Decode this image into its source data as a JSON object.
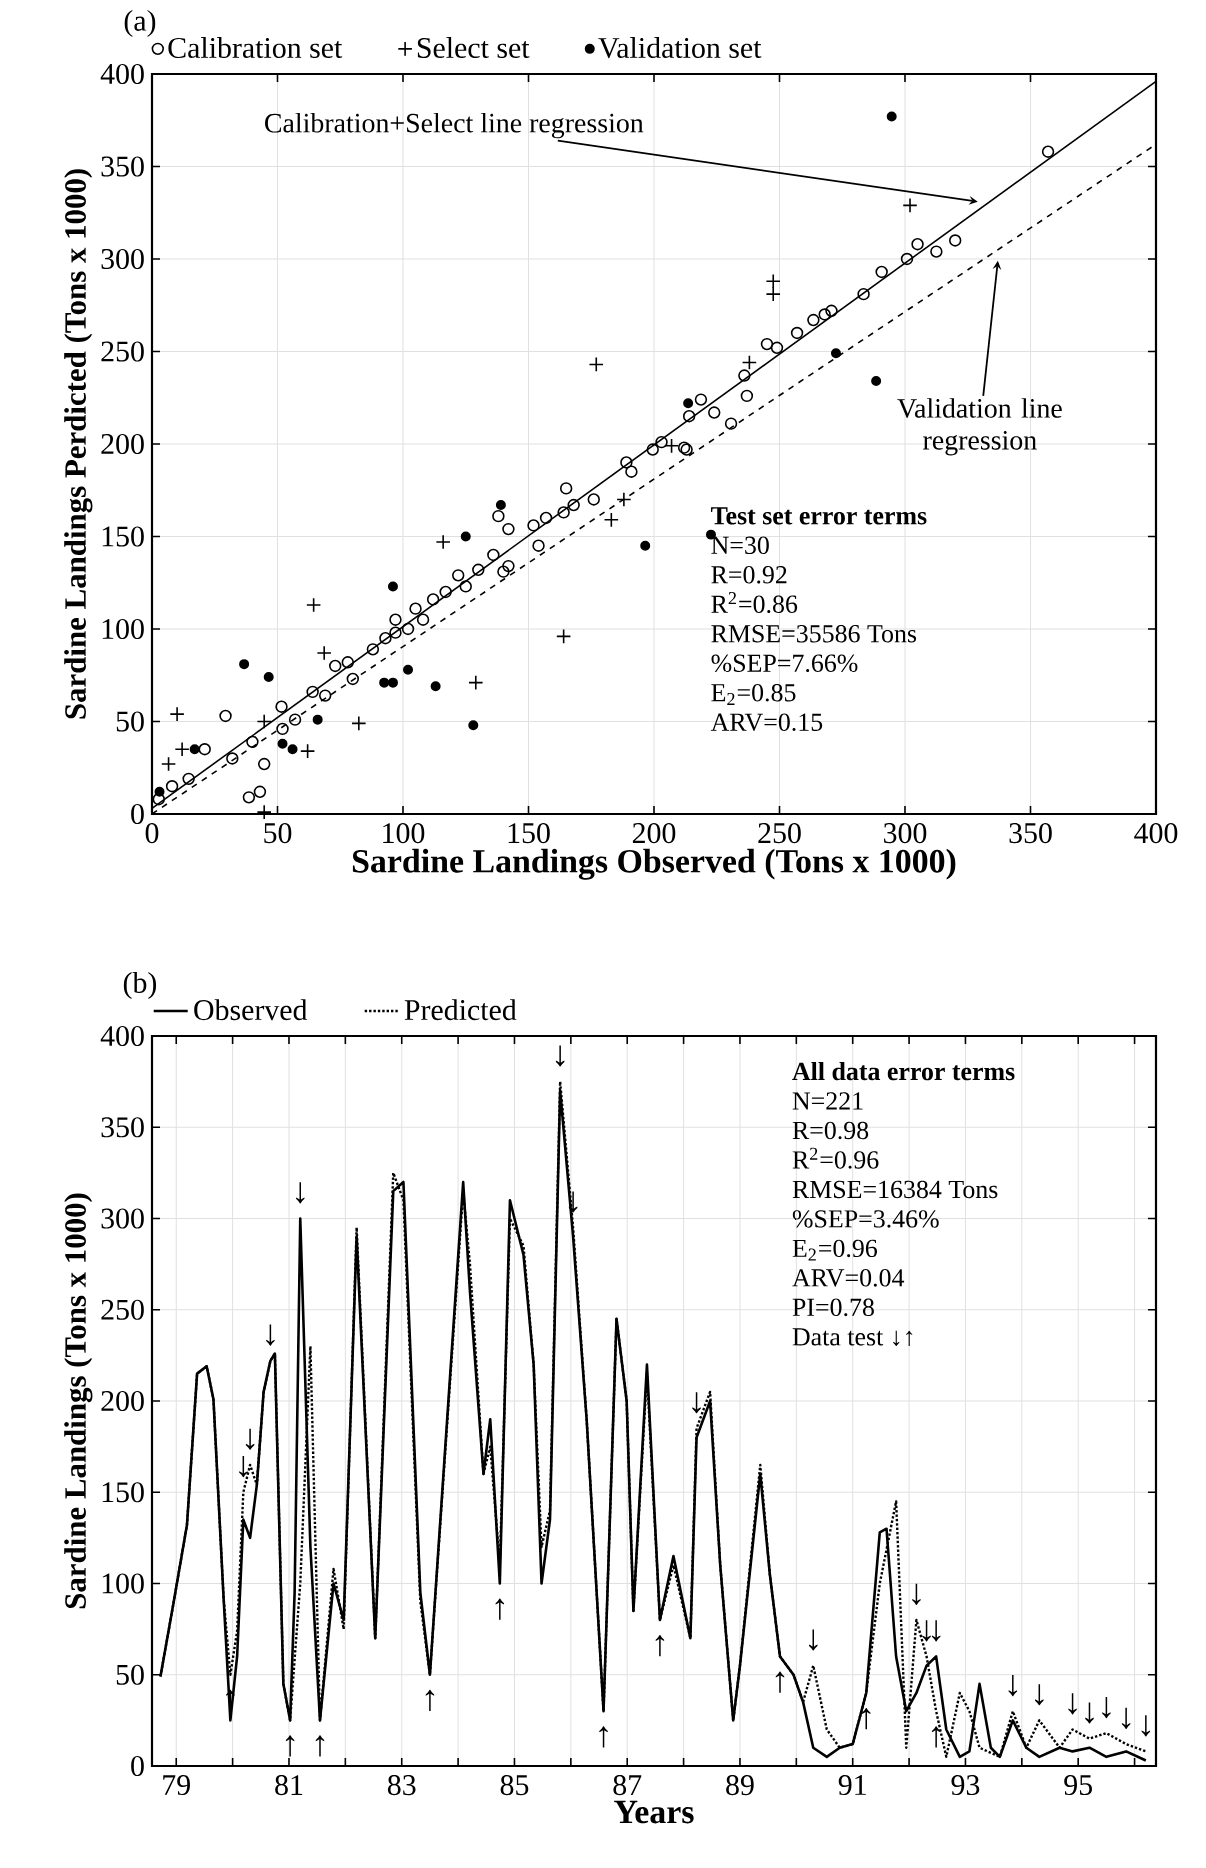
{
  "chart_data": [
    {
      "type": "scatter",
      "title": "(a)",
      "xlabel": "Sardine Landings Observed (Tons x 1000)",
      "ylabel": "Sardine Landings Perdicted (Tons x 1000)",
      "xlim": [
        0,
        400
      ],
      "ylim": [
        0,
        400
      ],
      "xticks": [
        0,
        50,
        100,
        150,
        200,
        250,
        300,
        350,
        400
      ],
      "yticks": [
        0,
        50,
        100,
        150,
        200,
        250,
        300,
        350,
        400
      ],
      "grid": true,
      "legend": "top",
      "series": [
        {
          "name": "Calibration set",
          "color": "#000000",
          "marker": "circle",
          "x": [
            38.6,
            43,
            44.7,
            29.3,
            21,
            14.6,
            8,
            2.7,
            32,
            40,
            52,
            51.6,
            57,
            64,
            69,
            73,
            78,
            80,
            88,
            93,
            97,
            97,
            102,
            105,
            108,
            112,
            117,
            122,
            125,
            130,
            136,
            140,
            142,
            138,
            142,
            152,
            154,
            157,
            164,
            165,
            168,
            176,
            189,
            191,
            199.5,
            203,
            213,
            214,
            218.7,
            224,
            230.7,
            237,
            236,
            245,
            249,
            257,
            263.5,
            268,
            270.7,
            283.5,
            290.7,
            300.8,
            305,
            312.5,
            320,
            357,
            212
          ],
          "values": [
            9,
            12,
            27,
            53,
            35,
            19,
            15,
            8,
            30,
            39,
            46,
            58,
            51,
            66,
            64,
            80,
            82,
            73,
            89,
            95,
            98,
            105,
            100,
            111,
            105,
            116,
            120,
            129,
            123,
            132,
            140,
            131,
            134,
            161,
            154,
            156,
            145,
            160,
            163,
            176,
            167,
            170,
            190,
            185,
            197,
            201,
            197,
            215,
            224,
            217,
            211,
            226,
            237,
            254,
            252,
            260,
            267,
            270,
            272,
            281,
            293,
            300,
            308,
            304,
            310,
            358,
            198
          ]
        },
        {
          "name": "Select set",
          "color": "#000000",
          "marker": "cross",
          "x": [
            10,
            12,
            6.6,
            44.7,
            64.4,
            68.6,
            62,
            82.4,
            116,
            129,
            164,
            183,
            188,
            44.7,
            207,
            177,
            302,
            247.5,
            247.5,
            238
          ],
          "values": [
            54,
            35,
            27,
            50,
            113,
            87,
            34,
            49,
            147,
            71,
            96,
            159,
            170,
            1,
            199,
            243,
            329,
            288,
            281,
            244
          ]
        },
        {
          "name": "Validation set",
          "color": "#000000",
          "marker": "circle",
          "x": [
            3,
            17,
            36.7,
            46.5,
            52,
            56,
            66,
            92.5,
            96,
            96,
            102,
            113,
            125,
            128,
            139,
            196.5,
            213.6,
            222.7,
            272.5,
            288.5,
            294.7
          ],
          "values": [
            12,
            35,
            81,
            74,
            38,
            35,
            51,
            71,
            71,
            123,
            78,
            69,
            150,
            48,
            167,
            145,
            222,
            151,
            249,
            234,
            377
          ]
        },
        {
          "type": "line",
          "color": "#000000",
          "line_style": "solid",
          "x": [
            0,
            400
          ],
          "values": [
            3,
            396
          ]
        },
        {
          "type": "line",
          "color": "#000000",
          "line_style": "dashed",
          "x": [
            0,
            400
          ],
          "values": [
            0,
            362
          ]
        }
      ],
      "annotations": [
        {
          "text": "Calibration+Select line regression",
          "x": 329,
          "y": 331
        },
        {
          "text": "Validation line regression",
          "x": 337,
          "y": 299
        },
        "Test set error terms",
        "N=30",
        "R=0.92",
        "R$^{2}$=0.86",
        "RMSE=35586 Tons",
        "%SEP=7.66%",
        "E$_{2}$=0.85",
        "ARV=0.15"
      ]
    },
    {
      "type": "line",
      "title": "(b)",
      "xlabel": "Years",
      "ylabel": "Sardine Landings (Tons x 1000)",
      "xlim": [
        78.57,
        96.38
      ],
      "ylim": [
        0,
        400
      ],
      "xticks": [
        79,
        {
          "value": 80,
          "label": null
        },
        81,
        {
          "value": 82,
          "label": null
        },
        83,
        {
          "value": 84,
          "label": null
        },
        85,
        {
          "value": 86,
          "label": null
        },
        87,
        {
          "value": 88,
          "label": null
        },
        89,
        {
          "value": 90,
          "label": null
        },
        91,
        {
          "value": 92,
          "label": null
        },
        93,
        {
          "value": 94,
          "label": null
        },
        95,
        {
          "value": 96,
          "label": null
        }
      ],
      "yticks": [
        0,
        50,
        100,
        150,
        200,
        250,
        300,
        350,
        400
      ],
      "grid": true,
      "legend": "top",
      "series": [
        {
          "name": "Observed",
          "color": "#000000",
          "line_style": "solid",
          "x": [
            78.72,
            78.95,
            79.19,
            79.37,
            79.54,
            79.66,
            79.84,
            79.96,
            80.08,
            80.19,
            80.31,
            80.43,
            80.55,
            80.67,
            80.75,
            80.9,
            81.02,
            81.1,
            81.2,
            81.38,
            81.55,
            81.79,
            81.97,
            82.2,
            82.53,
            82.85,
            83.03,
            83.33,
            83.5,
            84.09,
            84.21,
            84.45,
            84.57,
            84.74,
            84.92,
            85.16,
            85.34,
            85.48,
            85.63,
            85.81,
            86.04,
            86.28,
            86.58,
            86.81,
            86.99,
            87.11,
            87.35,
            87.58,
            87.82,
            88.12,
            88.23,
            88.47,
            88.65,
            88.88,
            89.0,
            89.36,
            89.53,
            89.71,
            89.95,
            90.12,
            90.3,
            90.54,
            90.77,
            91.0,
            91.24,
            91.48,
            91.6,
            91.77,
            91.95,
            92.13,
            92.31,
            92.48,
            92.66,
            92.9,
            93.07,
            93.25,
            93.45,
            93.61,
            93.84,
            94.08,
            94.31,
            94.67,
            94.9,
            95.2,
            95.5,
            95.85,
            96.2
          ],
          "values": [
            49,
            89,
            132,
            215,
            219,
            201,
            92,
            25,
            60,
            135,
            125,
            154,
            205,
            222,
            226,
            45,
            25,
            95,
            300,
            120,
            25,
            100,
            80,
            290,
            70,
            315,
            320,
            95,
            50,
            320,
            260,
            160,
            190,
            100,
            310,
            280,
            220,
            100,
            135,
            370,
            290,
            190,
            30,
            245,
            200,
            85,
            220,
            80,
            115,
            70,
            180,
            200,
            110,
            25,
            55,
            160,
            105,
            60,
            50,
            35,
            10,
            5,
            10,
            12,
            40,
            128,
            130,
            60,
            30,
            40,
            55,
            60,
            20,
            5,
            8,
            45,
            10,
            5,
            25,
            10,
            5,
            10,
            8,
            10,
            5,
            8,
            3
          ]
        },
        {
          "name": "Predicted",
          "color": "#000000",
          "line_style": "dotted",
          "x": [
            78.72,
            78.95,
            79.19,
            79.37,
            79.54,
            79.66,
            79.84,
            79.96,
            80.08,
            80.19,
            80.31,
            80.43,
            80.55,
            80.67,
            80.75,
            80.9,
            81.02,
            81.2,
            81.38,
            81.55,
            81.79,
            81.97,
            82.2,
            82.53,
            82.85,
            83.03,
            83.33,
            83.5,
            84.09,
            84.21,
            84.45,
            84.57,
            84.74,
            84.92,
            85.16,
            85.34,
            85.48,
            85.63,
            85.81,
            86.04,
            86.28,
            86.58,
            86.81,
            86.99,
            87.11,
            87.35,
            87.58,
            87.82,
            88.12,
            88.23,
            88.47,
            88.65,
            88.88,
            89.0,
            89.36,
            89.53,
            89.71,
            89.95,
            90.12,
            90.3,
            90.54,
            90.77,
            91.0,
            91.24,
            91.48,
            91.77,
            91.95,
            92.13,
            92.31,
            92.48,
            92.66,
            92.9,
            93.07,
            93.25,
            93.61,
            93.84,
            94.08,
            94.31,
            94.67,
            94.9,
            95.2,
            95.5,
            95.85,
            96.2
          ],
          "values": [
            49,
            89,
            132,
            215,
            219,
            201,
            92,
            50,
            74,
            150,
            165,
            154,
            205,
            222,
            226,
            45,
            25,
            100,
            230,
            25,
            108,
            75,
            295,
            70,
            325,
            310,
            90,
            50,
            315,
            275,
            160,
            175,
            110,
            300,
            285,
            220,
            120,
            140,
            375,
            295,
            190,
            30,
            245,
            200,
            85,
            215,
            80,
            110,
            70,
            185,
            205,
            110,
            25,
            55,
            165,
            105,
            60,
            50,
            35,
            55,
            20,
            10,
            12,
            40,
            100,
            145,
            10,
            80,
            60,
            30,
            5,
            40,
            30,
            10,
            5,
            30,
            10,
            25,
            10,
            20,
            15,
            18,
            12,
            8
          ]
        }
      ],
      "annotations": [
        "All data error terms",
        "N=221",
        "R=0.98",
        "R$^{2}$=0.96",
        "RMSE=16384 Tons",
        "%SEP=3.46%",
        "E$_{2}$=0.96",
        "ARV=0.04",
        "PI=0.78",
        "Data test ↓↑",
        {
          "text": "↓",
          "x": 80.19,
          "y": 150
        },
        {
          "text": "↓",
          "x": 80.31,
          "y": 165
        },
        {
          "text": "↓",
          "x": 80.67,
          "y": 222
        },
        {
          "text": "↓",
          "x": 81.2,
          "y": 300
        },
        {
          "text": "↓",
          "x": 85.81,
          "y": 375
        },
        {
          "text": "↓",
          "x": 86.04,
          "y": 295
        },
        {
          "text": "↓",
          "x": 88.23,
          "y": 185
        },
        {
          "text": "↓",
          "x": 90.3,
          "y": 55
        },
        {
          "text": "↓",
          "x": 92.13,
          "y": 80
        },
        {
          "text": "↓",
          "x": 92.31,
          "y": 60
        },
        {
          "text": "↓",
          "x": 92.48,
          "y": 60
        },
        {
          "text": "↓",
          "x": 93.84,
          "y": 30
        },
        {
          "text": "↓",
          "x": 94.31,
          "y": 25
        },
        {
          "text": "↓",
          "x": 94.9,
          "y": 20
        },
        {
          "text": "↓",
          "x": 95.2,
          "y": 15
        },
        {
          "text": "↓",
          "x": 95.5,
          "y": 18
        },
        {
          "text": "↓",
          "x": 95.85,
          "y": 12
        },
        {
          "text": "↓",
          "x": 96.2,
          "y": 8
        },
        {
          "text": "↑",
          "x": 79.96,
          "y": 50
        },
        {
          "text": "↑",
          "x": 81.02,
          "y": 25
        },
        {
          "text": "↑",
          "x": 81.55,
          "y": 25
        },
        {
          "text": "↑",
          "x": 83.5,
          "y": 50
        },
        {
          "text": "↑",
          "x": 84.74,
          "y": 100
        },
        {
          "text": "↑",
          "x": 86.58,
          "y": 30
        },
        {
          "text": "↑",
          "x": 87.58,
          "y": 80
        },
        {
          "text": "↑",
          "x": 89.71,
          "y": 60
        },
        {
          "text": "↑",
          "x": 91.24,
          "y": 40
        },
        {
          "text": "↑",
          "x": 92.48,
          "y": 30
        }
      ]
    }
  ]
}
